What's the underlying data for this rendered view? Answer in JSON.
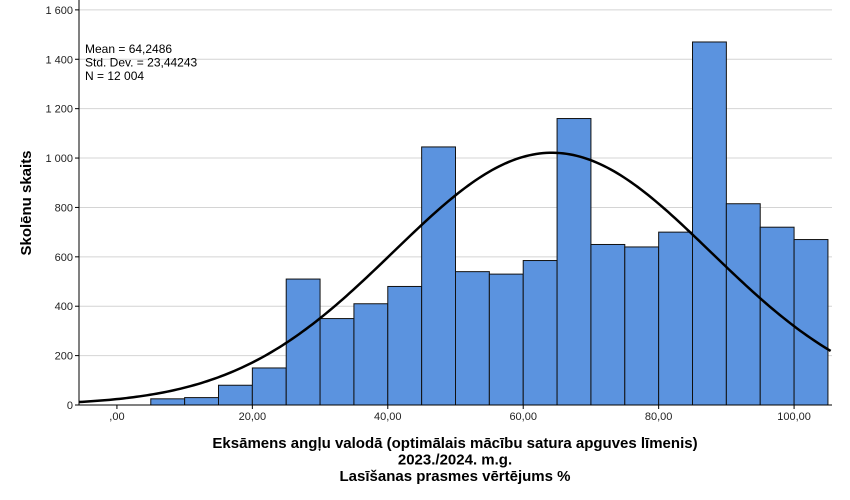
{
  "chart_data": {
    "type": "bar",
    "subtype": "histogram",
    "xlabel_lines": [
      "Eksāmens angļu valodā (optimālais mācību satura apguves līmenis)",
      "2023./2024. m.g.",
      "Lasīšanas prasmes vērtējums %"
    ],
    "ylabel": "Skolēnu skaits",
    "x_ticks": [
      {
        "value": 0,
        "label": ",00"
      },
      {
        "value": 20,
        "label": "20,00"
      },
      {
        "value": 40,
        "label": "40,00"
      },
      {
        "value": 60,
        "label": "60,00"
      },
      {
        "value": 80,
        "label": "80,00"
      },
      {
        "value": 100,
        "label": "100,00"
      }
    ],
    "y_ticks": [
      {
        "value": 0,
        "label": "0"
      },
      {
        "value": 200,
        "label": "200"
      },
      {
        "value": 400,
        "label": "400"
      },
      {
        "value": 600,
        "label": "600"
      },
      {
        "value": 800,
        "label": "800"
      },
      {
        "value": 1000,
        "label": "1 000"
      },
      {
        "value": 1200,
        "label": "1 200"
      },
      {
        "value": 1400,
        "label": "1 400"
      },
      {
        "value": 1600,
        "label": "1 600"
      }
    ],
    "xlim": [
      -5.6,
      105.6
    ],
    "ylim": [
      0,
      1640
    ],
    "bin_width": 5,
    "bins": [
      {
        "start": 0,
        "value": 0
      },
      {
        "start": 5,
        "value": 25
      },
      {
        "start": 10,
        "value": 30
      },
      {
        "start": 15,
        "value": 80
      },
      {
        "start": 20,
        "value": 150
      },
      {
        "start": 25,
        "value": 510
      },
      {
        "start": 30,
        "value": 350
      },
      {
        "start": 35,
        "value": 410
      },
      {
        "start": 40,
        "value": 480
      },
      {
        "start": 45,
        "value": 1045
      },
      {
        "start": 50,
        "value": 540
      },
      {
        "start": 55,
        "value": 530
      },
      {
        "start": 60,
        "value": 585
      },
      {
        "start": 65,
        "value": 1160
      },
      {
        "start": 70,
        "value": 650
      },
      {
        "start": 75,
        "value": 640
      },
      {
        "start": 80,
        "value": 700
      },
      {
        "start": 85,
        "value": 1470
      },
      {
        "start": 90,
        "value": 815
      },
      {
        "start": 95,
        "value": 720
      },
      {
        "start": 100,
        "value": 670
      }
    ],
    "normal_curve": {
      "mean": 64.2486,
      "std": 23.44243,
      "n": 12004
    },
    "stats_lines": [
      "Mean = 64,2486",
      "Std. Dev. = 23,44243",
      "N = 12 004"
    ],
    "grid": true,
    "colors": {
      "bar_fill": "#5b93df",
      "bar_stroke": "#111111",
      "curve": "#000000",
      "grid": "#d4d4d4"
    }
  }
}
